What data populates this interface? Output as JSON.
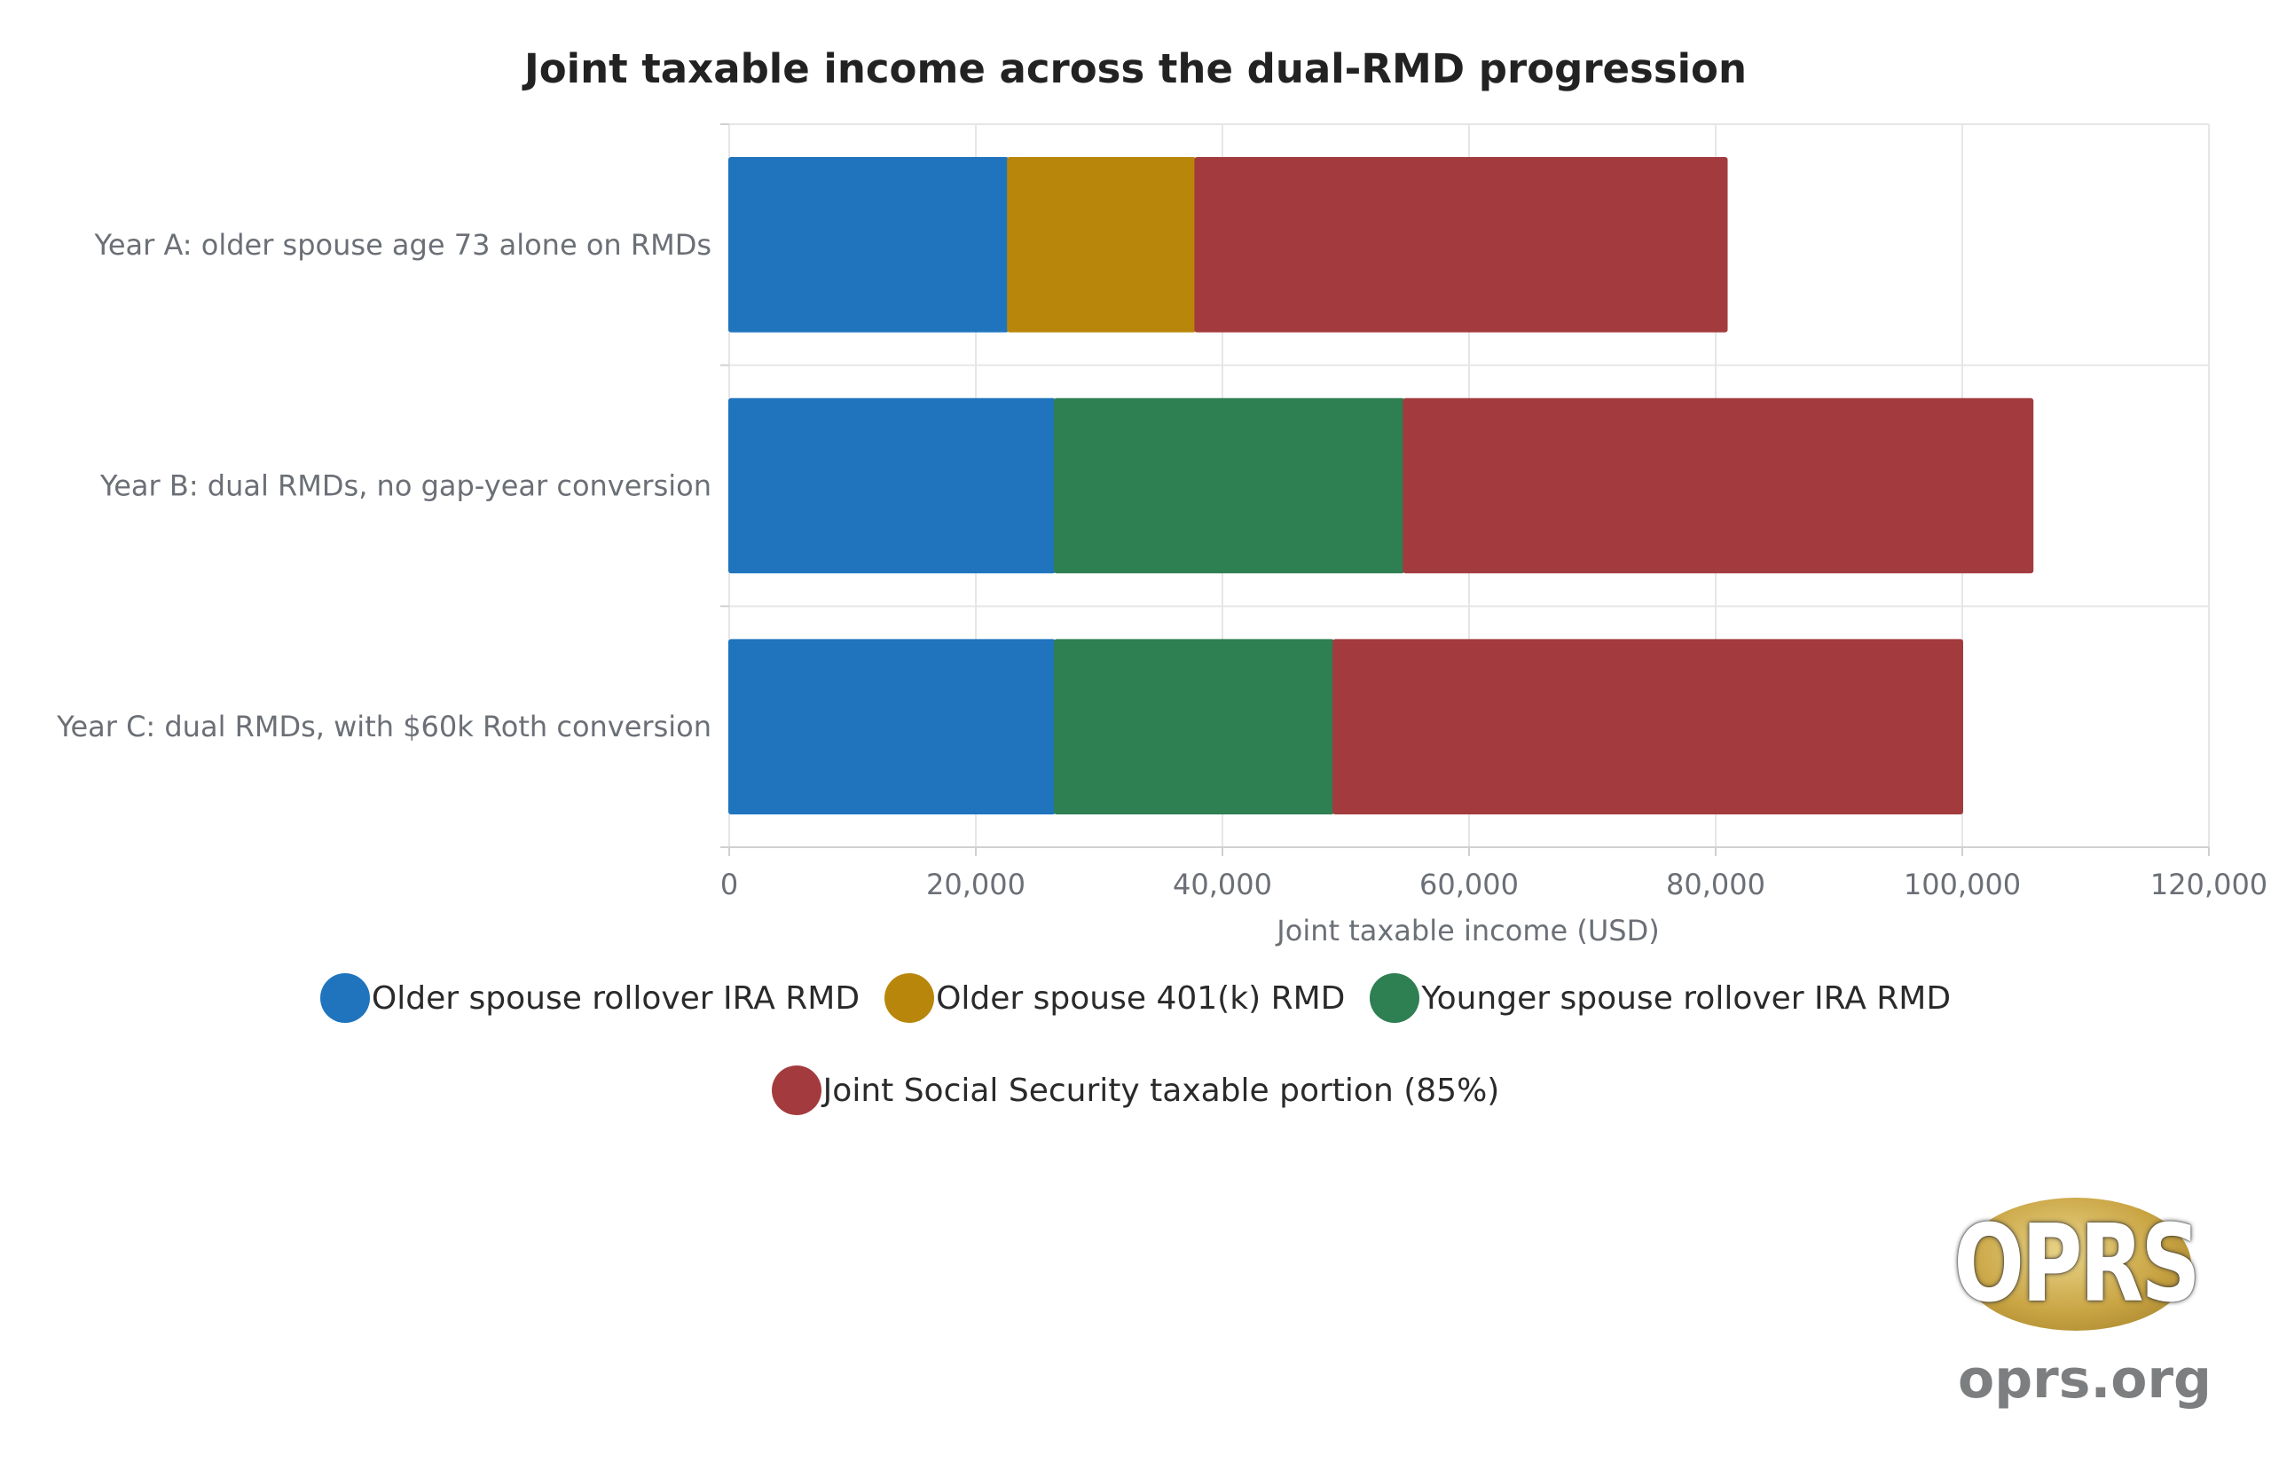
{
  "chart_data": {
    "type": "bar",
    "orientation": "horizontal",
    "stacked": true,
    "title": "Joint taxable income across the dual-RMD progression",
    "xlabel": "Joint taxable income (USD)",
    "ylabel": "",
    "xlim": [
      0,
      120000
    ],
    "x_ticks": [
      "0",
      "20,000",
      "40,000",
      "60,000",
      "80,000",
      "100,000",
      "120,000"
    ],
    "x_tick_values": [
      0,
      20000,
      40000,
      60000,
      80000,
      100000,
      120000
    ],
    "grid": true,
    "legend_position": "bottom",
    "categories": [
      "Year A: older spouse age 73 alone on RMDs",
      "Year B: dual RMDs, no gap-year conversion",
      "Year C: dual RMDs, with $60k Roth conversion"
    ],
    "series": [
      {
        "name": "Older spouse rollover IRA RMD",
        "color": "#1f74bd",
        "values": [
          22600,
          26400,
          26400
        ]
      },
      {
        "name": "Older spouse 401(k) RMD",
        "color": "#b8860b",
        "values": [
          15200,
          0,
          0
        ]
      },
      {
        "name": "Younger spouse rollover IRA RMD",
        "color": "#2e7f52",
        "values": [
          0,
          28300,
          22600
        ]
      },
      {
        "name": "Joint Social Security taxable portion (85%)",
        "color": "#a33b3e",
        "values": [
          43100,
          51000,
          51000
        ]
      }
    ]
  },
  "legend": [
    {
      "label": "Older spouse rollover IRA RMD",
      "color": "#1f74bd"
    },
    {
      "label": "Older spouse 401(k) RMD",
      "color": "#b8860b"
    },
    {
      "label": "Younger spouse rollover IRA RMD",
      "color": "#2e7f52"
    },
    {
      "label": "Joint Social Security taxable portion (85%)",
      "color": "#a33b3e"
    }
  ],
  "watermark": {
    "logo_text": "OPRS",
    "url": "oprs.org"
  }
}
